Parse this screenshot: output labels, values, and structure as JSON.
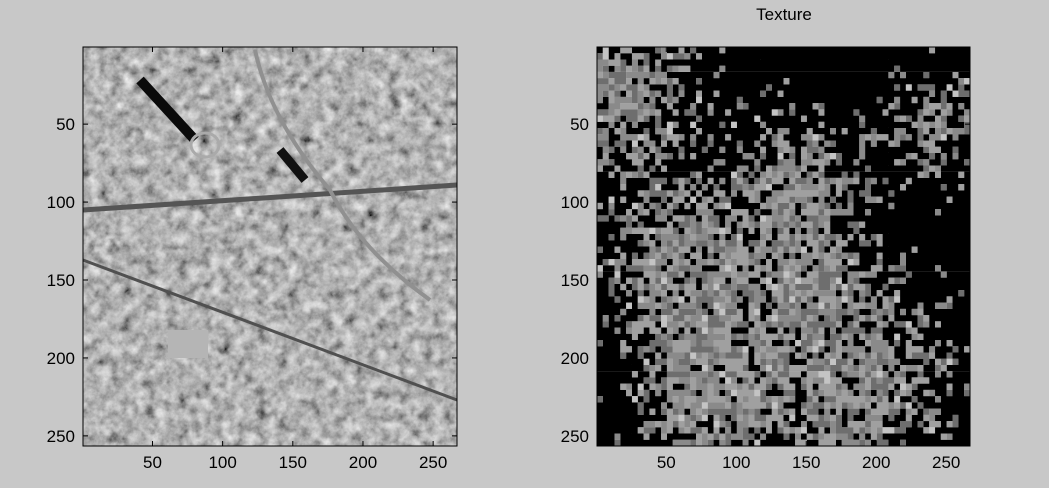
{
  "chart_data": [
    {
      "type": "image",
      "xlim": [
        0.5,
        267
      ],
      "ylim": [
        0.5,
        256.5
      ],
      "y_reversed": true,
      "xticks": [
        50,
        100,
        150,
        200,
        250
      ],
      "yticks": [
        50,
        100,
        150,
        200,
        250
      ]
    },
    {
      "type": "image",
      "title": "Texture",
      "xlim": [
        0.5,
        267
      ],
      "ylim": [
        0.5,
        256.5
      ],
      "y_reversed": true,
      "xticks": [
        50,
        100,
        150,
        200,
        250
      ],
      "yticks": [
        50,
        100,
        150,
        200,
        250
      ]
    }
  ]
}
